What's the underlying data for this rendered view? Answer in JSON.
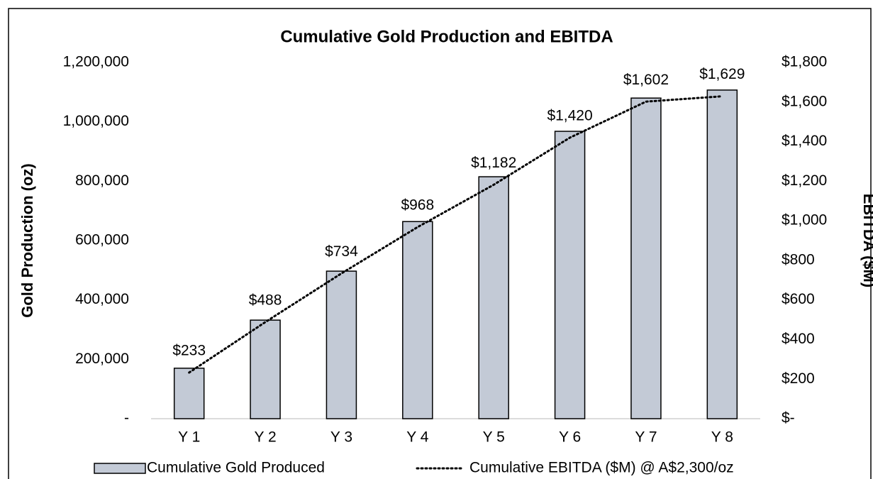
{
  "chart_data": {
    "type": "bar_line",
    "title": "Cumulative Gold Production and EBITDA",
    "y_label": "Gold Production (oz)",
    "y2_label": "EBITDA ($M)",
    "categories": [
      "Y 1",
      "Y 2",
      "Y 3",
      "Y 4",
      "Y 5",
      "Y 6",
      "Y 7",
      "Y 8"
    ],
    "series": [
      {
        "name": "Cumulative Gold Produced",
        "type": "bar",
        "color": "#c3cad6",
        "axis": "y",
        "values": [
          170000,
          332000,
          497000,
          664000,
          815000,
          968000,
          1080000,
          1107000
        ]
      },
      {
        "name": "Cumulative EBITDA ($M) @ A$2,300/oz",
        "type": "line",
        "color": "#000000",
        "axis": "y2",
        "values": [
          233,
          488,
          734,
          968,
          1182,
          1420,
          1602,
          1629
        ],
        "value_labels": [
          "$233",
          "$488",
          "$734",
          "$968",
          "$1,182",
          "$1,420",
          "$1,602",
          "$1,629"
        ]
      }
    ],
    "ylim": [
      0,
      1200000
    ],
    "yticks": [
      {
        "value": 0,
        "label": "-"
      },
      {
        "value": 200000,
        "label": "200,000"
      },
      {
        "value": 400000,
        "label": "400,000"
      },
      {
        "value": 600000,
        "label": "600,000"
      },
      {
        "value": 800000,
        "label": "800,000"
      },
      {
        "value": 1000000,
        "label": "1,000,000"
      },
      {
        "value": 1200000,
        "label": "1,200,000"
      }
    ],
    "y2lim": [
      0,
      1800
    ],
    "y2ticks": [
      {
        "value": 0,
        "label": "$-"
      },
      {
        "value": 200,
        "label": "$200"
      },
      {
        "value": 400,
        "label": "$400"
      },
      {
        "value": 600,
        "label": "$600"
      },
      {
        "value": 800,
        "label": "$800"
      },
      {
        "value": 1000,
        "label": "$1,000"
      },
      {
        "value": 1200,
        "label": "$1,200"
      },
      {
        "value": 1400,
        "label": "$1,400"
      },
      {
        "value": 1600,
        "label": "$1,600"
      },
      {
        "value": 1800,
        "label": "$1,800"
      }
    ],
    "legend": "bottom"
  }
}
